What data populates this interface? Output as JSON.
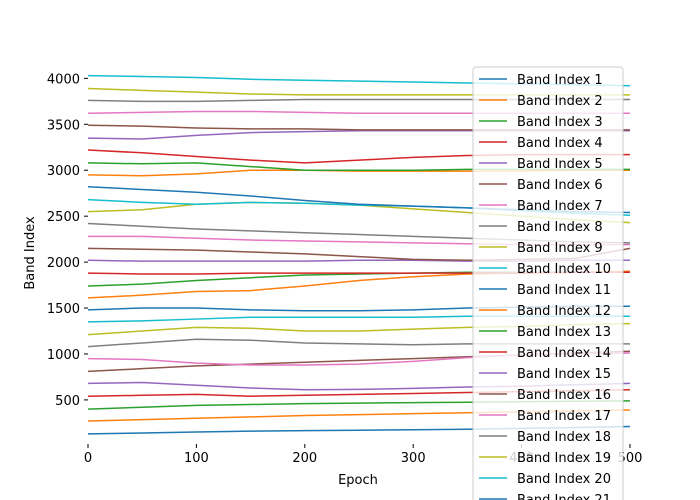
{
  "chart_data": {
    "type": "line",
    "x_label": "Epoch",
    "y_label": "Band Index",
    "x": [
      0,
      50,
      100,
      150,
      200,
      250,
      300,
      350,
      400,
      450,
      500
    ],
    "xlim": [
      0,
      500
    ],
    "xticks": [
      0,
      100,
      200,
      300,
      400,
      500
    ],
    "ylim": [
      20,
      4200
    ],
    "yticks": [
      500,
      1000,
      1500,
      2000,
      2500,
      3000,
      3500,
      4000
    ],
    "legend": "upper right",
    "series": [
      {
        "name": "Band Index 1",
        "color": "#1f77b4",
        "values": [
          130,
          140,
          150,
          160,
          165,
          170,
          175,
          180,
          190,
          200,
          210
        ]
      },
      {
        "name": "Band Index 2",
        "color": "#ff7f0e",
        "values": [
          270,
          285,
          300,
          315,
          330,
          340,
          350,
          360,
          370,
          380,
          390
        ]
      },
      {
        "name": "Band Index 3",
        "color": "#2ca02c",
        "values": [
          400,
          420,
          440,
          450,
          460,
          465,
          470,
          475,
          480,
          485,
          490
        ]
      },
      {
        "name": "Band Index 4",
        "color": "#d62728",
        "values": [
          540,
          550,
          560,
          540,
          550,
          560,
          570,
          580,
          590,
          600,
          610
        ]
      },
      {
        "name": "Band Index 5",
        "color": "#9467bd",
        "values": [
          680,
          690,
          660,
          630,
          610,
          615,
          625,
          640,
          650,
          665,
          680
        ]
      },
      {
        "name": "Band Index 6",
        "color": "#8c564b",
        "values": [
          810,
          840,
          870,
          890,
          910,
          930,
          950,
          970,
          990,
          1010,
          1030
        ]
      },
      {
        "name": "Band Index 7",
        "color": "#e377c2",
        "values": [
          950,
          940,
          900,
          880,
          880,
          890,
          920,
          960,
          990,
          1000,
          1010
        ]
      },
      {
        "name": "Band Index 8",
        "color": "#7f7f7f",
        "values": [
          1080,
          1120,
          1160,
          1150,
          1120,
          1110,
          1100,
          1110,
          1110,
          1110,
          1110
        ]
      },
      {
        "name": "Band Index 9",
        "color": "#bcbd22",
        "values": [
          1210,
          1250,
          1290,
          1280,
          1250,
          1250,
          1270,
          1290,
          1300,
          1320,
          1330
        ]
      },
      {
        "name": "Band Index 10",
        "color": "#17becf",
        "values": [
          1350,
          1360,
          1380,
          1400,
          1400,
          1400,
          1400,
          1410,
          1410,
          1410,
          1410
        ]
      },
      {
        "name": "Band Index 11",
        "color": "#1f77b4",
        "values": [
          1480,
          1500,
          1500,
          1480,
          1470,
          1470,
          1480,
          1500,
          1510,
          1520,
          1520
        ]
      },
      {
        "name": "Band Index 12",
        "color": "#ff7f0e",
        "values": [
          1610,
          1640,
          1680,
          1690,
          1740,
          1800,
          1840,
          1870,
          1880,
          1890,
          1900
        ]
      },
      {
        "name": "Band Index 13",
        "color": "#2ca02c",
        "values": [
          1740,
          1760,
          1800,
          1830,
          1860,
          1870,
          1880,
          1890,
          1890,
          1890,
          1890
        ]
      },
      {
        "name": "Band Index 14",
        "color": "#d62728",
        "values": [
          1880,
          1870,
          1870,
          1880,
          1880,
          1880,
          1880,
          1880,
          1880,
          1890,
          1890
        ]
      },
      {
        "name": "Band Index 15",
        "color": "#9467bd",
        "values": [
          2020,
          2010,
          2010,
          2010,
          2010,
          2020,
          2020,
          2010,
          2010,
          2020,
          2020
        ]
      },
      {
        "name": "Band Index 16",
        "color": "#8c564b",
        "values": [
          2150,
          2140,
          2130,
          2110,
          2090,
          2060,
          2030,
          2020,
          2030,
          2040,
          2150
        ]
      },
      {
        "name": "Band Index 17",
        "color": "#e377c2",
        "values": [
          2280,
          2280,
          2260,
          2240,
          2230,
          2220,
          2210,
          2200,
          2190,
          2190,
          2190
        ]
      },
      {
        "name": "Band Index 18",
        "color": "#7f7f7f",
        "values": [
          2420,
          2390,
          2360,
          2340,
          2320,
          2300,
          2280,
          2260,
          2240,
          2220,
          2210
        ]
      },
      {
        "name": "Band Index 19",
        "color": "#bcbd22",
        "values": [
          2550,
          2570,
          2630,
          2650,
          2640,
          2620,
          2580,
          2540,
          2500,
          2460,
          2430
        ]
      },
      {
        "name": "Band Index 20",
        "color": "#17becf",
        "values": [
          2680,
          2650,
          2630,
          2650,
          2640,
          2620,
          2610,
          2590,
          2560,
          2530,
          2510
        ]
      },
      {
        "name": "Band Index 21",
        "color": "#1f77b4",
        "values": [
          2820,
          2790,
          2760,
          2720,
          2670,
          2630,
          2610,
          2590,
          2570,
          2550,
          2540
        ]
      },
      {
        "color": "#ff7f0e",
        "values": [
          2950,
          2940,
          2960,
          3000,
          3000,
          2990,
          2990,
          2990,
          2990,
          3000,
          3000
        ]
      },
      {
        "color": "#2ca02c",
        "values": [
          3080,
          3070,
          3080,
          3040,
          3000,
          3000,
          3000,
          3010,
          3010,
          3010,
          3010
        ]
      },
      {
        "color": "#d62728",
        "values": [
          3220,
          3190,
          3150,
          3110,
          3080,
          3110,
          3140,
          3160,
          3170,
          3170,
          3170
        ]
      },
      {
        "color": "#9467bd",
        "values": [
          3350,
          3340,
          3380,
          3410,
          3420,
          3430,
          3430,
          3430,
          3430,
          3430,
          3430
        ]
      },
      {
        "color": "#8c564b",
        "values": [
          3490,
          3480,
          3460,
          3450,
          3450,
          3440,
          3440,
          3440,
          3440,
          3440,
          3440
        ]
      },
      {
        "color": "#e377c2",
        "values": [
          3620,
          3630,
          3640,
          3640,
          3630,
          3620,
          3620,
          3620,
          3620,
          3620,
          3620
        ]
      },
      {
        "color": "#7f7f7f",
        "values": [
          3760,
          3750,
          3750,
          3760,
          3770,
          3770,
          3770,
          3770,
          3770,
          3770,
          3770
        ]
      },
      {
        "color": "#bcbd22",
        "values": [
          3890,
          3870,
          3850,
          3830,
          3820,
          3820,
          3820,
          3820,
          3820,
          3820,
          3820
        ]
      },
      {
        "color": "#17becf",
        "values": [
          4030,
          4020,
          4010,
          3990,
          3980,
          3970,
          3960,
          3950,
          3940,
          3930,
          3920
        ]
      }
    ]
  }
}
